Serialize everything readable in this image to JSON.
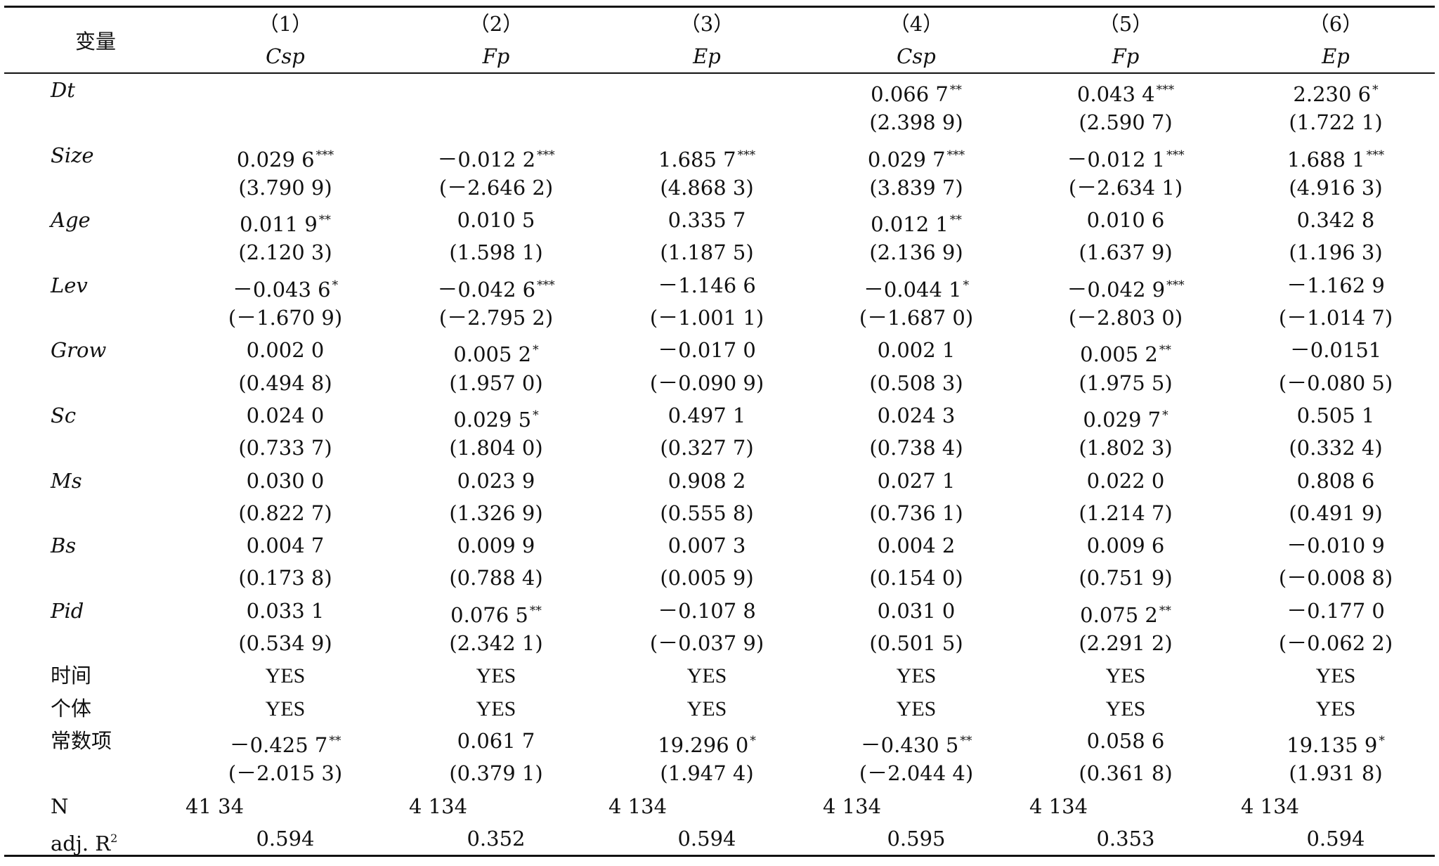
{
  "header": {
    "variable_label": "变量",
    "columns": [
      {
        "num": "（1）",
        "dep": "Csp"
      },
      {
        "num": "（2）",
        "dep": "Fp"
      },
      {
        "num": "（3）",
        "dep": "Ep"
      },
      {
        "num": "（4）",
        "dep": "Csp"
      },
      {
        "num": "（5）",
        "dep": "Fp"
      },
      {
        "num": "（6）",
        "dep": "Ep"
      }
    ]
  },
  "rows": [
    {
      "label": "Dt",
      "style": "italic",
      "cells": [
        {
          "v": "",
          "s": ""
        },
        {
          "v": "",
          "s": ""
        },
        {
          "v": "",
          "s": ""
        },
        {
          "v": "0.066 7",
          "s": "**"
        },
        {
          "v": "0.043 4",
          "s": "***"
        },
        {
          "v": "2.230 6",
          "s": "*"
        }
      ]
    },
    {
      "label": "",
      "style": "italic",
      "cells": [
        {
          "v": "",
          "s": ""
        },
        {
          "v": "",
          "s": ""
        },
        {
          "v": "",
          "s": ""
        },
        {
          "v": "(2.398 9)",
          "s": ""
        },
        {
          "v": "(2.590 7)",
          "s": ""
        },
        {
          "v": "(1.722 1)",
          "s": ""
        }
      ]
    },
    {
      "label": "Size",
      "style": "italic",
      "cells": [
        {
          "v": "0.029 6",
          "s": "***"
        },
        {
          "v": "－0.012 2",
          "s": "***"
        },
        {
          "v": "1.685 7",
          "s": "***"
        },
        {
          "v": "0.029 7",
          "s": "***"
        },
        {
          "v": "－0.012 1",
          "s": "***"
        },
        {
          "v": "1.688 1",
          "s": "***"
        }
      ]
    },
    {
      "label": "",
      "style": "italic",
      "cells": [
        {
          "v": "(3.790 9)",
          "s": ""
        },
        {
          "v": "(－2.646 2)",
          "s": ""
        },
        {
          "v": "(4.868 3)",
          "s": ""
        },
        {
          "v": "(3.839 7)",
          "s": ""
        },
        {
          "v": "(－2.634 1)",
          "s": ""
        },
        {
          "v": "(4.916 3)",
          "s": ""
        }
      ]
    },
    {
      "label": "Age",
      "style": "italic",
      "cells": [
        {
          "v": "0.011 9",
          "s": "**"
        },
        {
          "v": "0.010 5",
          "s": ""
        },
        {
          "v": "0.335 7",
          "s": ""
        },
        {
          "v": "0.012 1",
          "s": "**"
        },
        {
          "v": "0.010 6",
          "s": ""
        },
        {
          "v": "0.342 8",
          "s": ""
        }
      ]
    },
    {
      "label": "",
      "style": "italic",
      "cells": [
        {
          "v": "(2.120 3)",
          "s": ""
        },
        {
          "v": "(1.598 1)",
          "s": ""
        },
        {
          "v": "(1.187 5)",
          "s": ""
        },
        {
          "v": "(2.136 9)",
          "s": ""
        },
        {
          "v": "(1.637 9)",
          "s": ""
        },
        {
          "v": "(1.196 3)",
          "s": ""
        }
      ]
    },
    {
      "label": "Lev",
      "style": "italic",
      "cells": [
        {
          "v": "－0.043 6",
          "s": "*"
        },
        {
          "v": "－0.042 6",
          "s": "***"
        },
        {
          "v": "－1.146 6",
          "s": ""
        },
        {
          "v": "－0.044 1",
          "s": "*"
        },
        {
          "v": "－0.042 9",
          "s": "***"
        },
        {
          "v": "－1.162 9",
          "s": ""
        }
      ]
    },
    {
      "label": "",
      "style": "italic",
      "cells": [
        {
          "v": "(－1.670 9)",
          "s": ""
        },
        {
          "v": "(－2.795 2)",
          "s": ""
        },
        {
          "v": "(－1.001 1)",
          "s": ""
        },
        {
          "v": "(－1.687 0)",
          "s": ""
        },
        {
          "v": "(－2.803 0)",
          "s": ""
        },
        {
          "v": "(－1.014 7)",
          "s": ""
        }
      ]
    },
    {
      "label": "Grow",
      "style": "italic",
      "cells": [
        {
          "v": "0.002 0",
          "s": ""
        },
        {
          "v": "0.005 2",
          "s": "*"
        },
        {
          "v": "－0.017 0",
          "s": ""
        },
        {
          "v": "0.002 1",
          "s": ""
        },
        {
          "v": "0.005 2",
          "s": "**"
        },
        {
          "v": "－0.0151",
          "s": ""
        }
      ]
    },
    {
      "label": "",
      "style": "italic",
      "cells": [
        {
          "v": "(0.494 8)",
          "s": ""
        },
        {
          "v": "(1.957 0)",
          "s": ""
        },
        {
          "v": "(－0.090 9)",
          "s": ""
        },
        {
          "v": "(0.508 3)",
          "s": ""
        },
        {
          "v": "(1.975 5)",
          "s": ""
        },
        {
          "v": "(－0.080 5)",
          "s": ""
        }
      ]
    },
    {
      "label": "Sc",
      "style": "italic",
      "cells": [
        {
          "v": "0.024 0",
          "s": ""
        },
        {
          "v": "0.029 5",
          "s": "*"
        },
        {
          "v": "0.497 1",
          "s": ""
        },
        {
          "v": "0.024 3",
          "s": ""
        },
        {
          "v": "0.029 7",
          "s": "*"
        },
        {
          "v": "0.505 1",
          "s": ""
        }
      ]
    },
    {
      "label": "",
      "style": "italic",
      "cells": [
        {
          "v": "(0.733 7)",
          "s": ""
        },
        {
          "v": "(1.804 0)",
          "s": ""
        },
        {
          "v": "(0.327 7)",
          "s": ""
        },
        {
          "v": "(0.738 4)",
          "s": ""
        },
        {
          "v": "(1.802 3)",
          "s": ""
        },
        {
          "v": "(0.332 4)",
          "s": ""
        }
      ]
    },
    {
      "label": "Ms",
      "style": "italic",
      "cells": [
        {
          "v": "0.030 0",
          "s": ""
        },
        {
          "v": "0.023 9",
          "s": ""
        },
        {
          "v": "0.908 2",
          "s": ""
        },
        {
          "v": "0.027 1",
          "s": ""
        },
        {
          "v": "0.022 0",
          "s": ""
        },
        {
          "v": "0.808 6",
          "s": ""
        }
      ]
    },
    {
      "label": "",
      "style": "italic",
      "cells": [
        {
          "v": "(0.822 7)",
          "s": ""
        },
        {
          "v": "(1.326 9)",
          "s": ""
        },
        {
          "v": "(0.555 8)",
          "s": ""
        },
        {
          "v": "(0.736 1)",
          "s": ""
        },
        {
          "v": "(1.214 7)",
          "s": ""
        },
        {
          "v": "(0.491 9)",
          "s": ""
        }
      ]
    },
    {
      "label": "Bs",
      "style": "italic",
      "cells": [
        {
          "v": "0.004 7",
          "s": ""
        },
        {
          "v": "0.009 9",
          "s": ""
        },
        {
          "v": "0.007 3",
          "s": ""
        },
        {
          "v": "0.004 2",
          "s": ""
        },
        {
          "v": "0.009 6",
          "s": ""
        },
        {
          "v": "－0.010 9",
          "s": ""
        }
      ]
    },
    {
      "label": "",
      "style": "italic",
      "cells": [
        {
          "v": "(0.173 8)",
          "s": ""
        },
        {
          "v": "(0.788 4)",
          "s": ""
        },
        {
          "v": "(0.005 9)",
          "s": ""
        },
        {
          "v": "(0.154 0)",
          "s": ""
        },
        {
          "v": "(0.751 9)",
          "s": ""
        },
        {
          "v": "(－0.008 8)",
          "s": ""
        }
      ]
    },
    {
      "label": "Pid",
      "style": "italic",
      "cells": [
        {
          "v": "0.033 1",
          "s": ""
        },
        {
          "v": "0.076 5",
          "s": "**"
        },
        {
          "v": "－0.107 8",
          "s": ""
        },
        {
          "v": "0.031 0",
          "s": ""
        },
        {
          "v": "0.075 2",
          "s": "**"
        },
        {
          "v": "－0.177 0",
          "s": ""
        }
      ]
    },
    {
      "label": "",
      "style": "italic",
      "cells": [
        {
          "v": "(0.534 9)",
          "s": ""
        },
        {
          "v": "(2.342 1)",
          "s": ""
        },
        {
          "v": "(－0.037 9)",
          "s": ""
        },
        {
          "v": "(0.501 5)",
          "s": ""
        },
        {
          "v": "(2.291 2)",
          "s": ""
        },
        {
          "v": "(－0.062 2)",
          "s": ""
        }
      ]
    },
    {
      "label": "时间",
      "style": "cjk",
      "cells": [
        {
          "v": "YES",
          "s": ""
        },
        {
          "v": "YES",
          "s": ""
        },
        {
          "v": "YES",
          "s": ""
        },
        {
          "v": "YES",
          "s": ""
        },
        {
          "v": "YES",
          "s": ""
        },
        {
          "v": "YES",
          "s": ""
        }
      ]
    },
    {
      "label": "个体",
      "style": "cjk",
      "cells": [
        {
          "v": "YES",
          "s": ""
        },
        {
          "v": "YES",
          "s": ""
        },
        {
          "v": "YES",
          "s": ""
        },
        {
          "v": "YES",
          "s": ""
        },
        {
          "v": "YES",
          "s": ""
        },
        {
          "v": "YES",
          "s": ""
        }
      ]
    },
    {
      "label": "常数项",
      "style": "cjk",
      "cells": [
        {
          "v": "－0.425 7",
          "s": "**"
        },
        {
          "v": "0.061 7",
          "s": ""
        },
        {
          "v": "19.296 0",
          "s": "*"
        },
        {
          "v": "－0.430 5",
          "s": "**"
        },
        {
          "v": "0.058 6",
          "s": ""
        },
        {
          "v": "19.135 9",
          "s": "*"
        }
      ]
    },
    {
      "label": "",
      "style": "cjk",
      "cells": [
        {
          "v": "(－2.015 3)",
          "s": ""
        },
        {
          "v": "(0.379 1)",
          "s": ""
        },
        {
          "v": "(1.947 4)",
          "s": ""
        },
        {
          "v": "(－2.044 4)",
          "s": ""
        },
        {
          "v": "(0.361 8)",
          "s": ""
        },
        {
          "v": "(1.931 8)",
          "s": ""
        }
      ]
    }
  ],
  "n_row": {
    "label": "N",
    "values": [
      "41 34",
      "4 134",
      "4 134",
      "4 134",
      "4 134",
      "4 134"
    ]
  },
  "r2_row": {
    "label": "adj. R",
    "label_sup": "2",
    "values": [
      "0.594",
      "0.352",
      "0.594",
      "0.595",
      "0.353",
      "0.594"
    ]
  }
}
